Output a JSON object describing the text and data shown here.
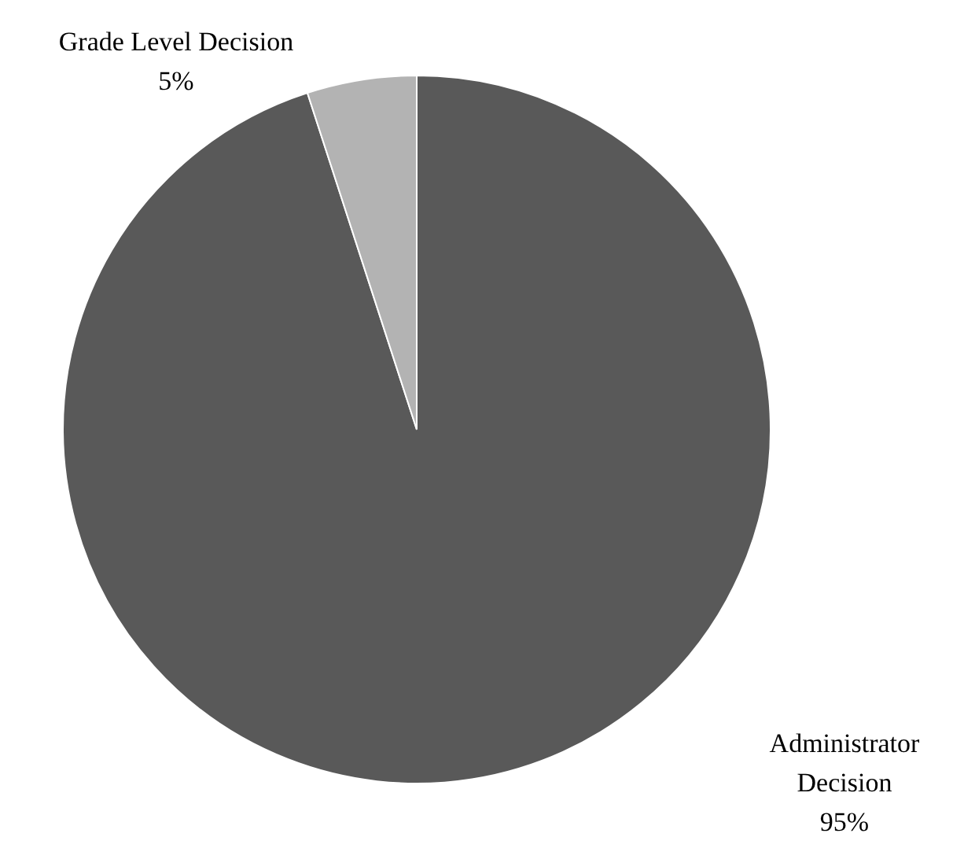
{
  "chart_data": {
    "type": "pie",
    "categories": [
      "Administrator Decision",
      "Grade Level Decision"
    ],
    "values": [
      95,
      5
    ],
    "colors": [
      "#595959",
      "#b3b3b3"
    ],
    "value_labels": [
      "95%",
      "5%"
    ]
  }
}
